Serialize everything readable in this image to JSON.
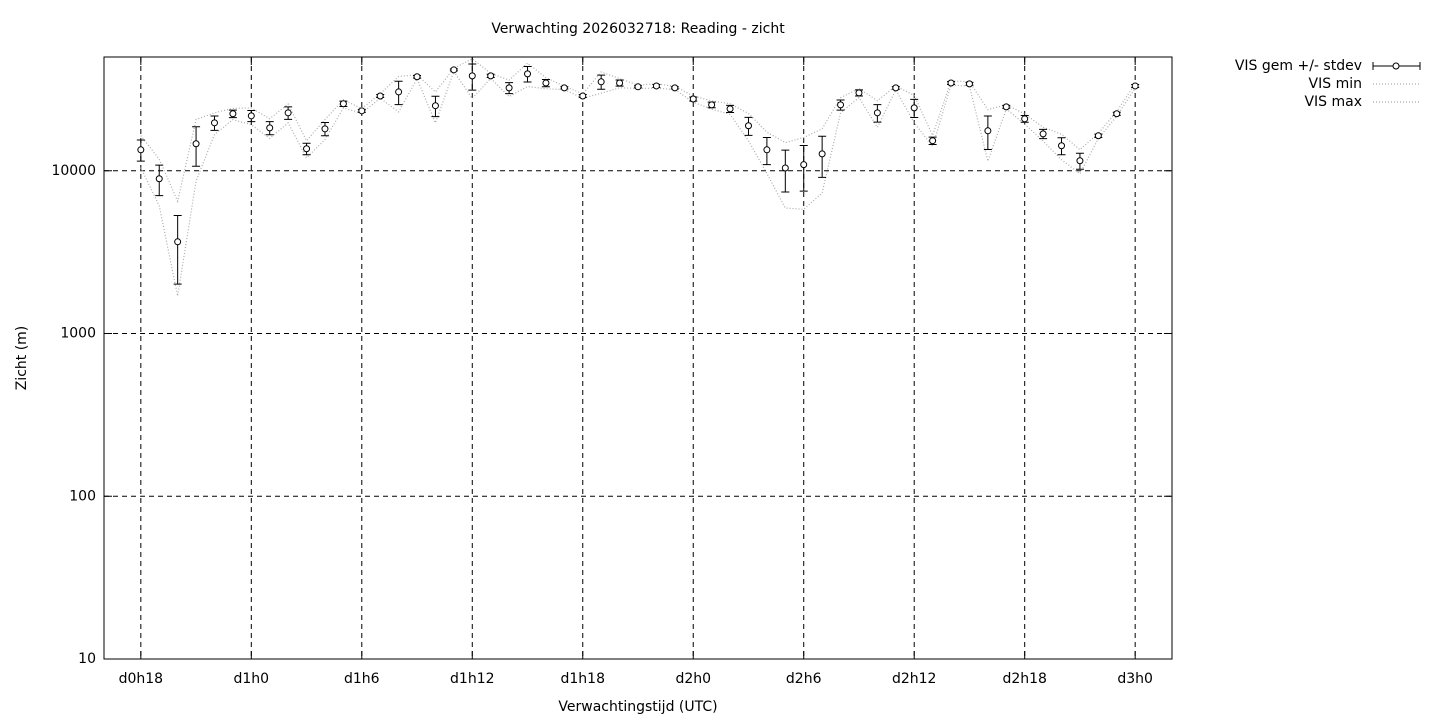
{
  "chart_data": {
    "type": "errorbar",
    "title": "Verwachting 2026032718: Reading - zicht",
    "xlabel": "Verwachtingstijd (UTC)",
    "ylabel": "Zicht (m)",
    "x": [
      18,
      19,
      20,
      21,
      22,
      23,
      24,
      25,
      26,
      27,
      28,
      29,
      30,
      31,
      32,
      33,
      34,
      35,
      36,
      37,
      38,
      39,
      40,
      41,
      42,
      43,
      44,
      45,
      46,
      47,
      48,
      49,
      50,
      51,
      52,
      53,
      54,
      55,
      56,
      57,
      58,
      59,
      60,
      61,
      62,
      63,
      64,
      65,
      66,
      67,
      68,
      69,
      70,
      71,
      72
    ],
    "xlim": [
      16,
      74
    ],
    "xticks": [
      {
        "value": 18,
        "label": "d0h18"
      },
      {
        "value": 24,
        "label": "d1h0"
      },
      {
        "value": 30,
        "label": "d1h6"
      },
      {
        "value": 36,
        "label": "d1h12"
      },
      {
        "value": 42,
        "label": "d1h18"
      },
      {
        "value": 48,
        "label": "d2h0"
      },
      {
        "value": 54,
        "label": "d2h6"
      },
      {
        "value": 60,
        "label": "d2h12"
      },
      {
        "value": 66,
        "label": "d2h18"
      },
      {
        "value": 72,
        "label": "d3h0"
      }
    ],
    "ylim": [
      10,
      50000
    ],
    "yticks": [
      10,
      100,
      1000,
      10000
    ],
    "log_y": true,
    "grid": true,
    "series": [
      {
        "name": "VIS gem +/- stdev",
        "color": "#000000",
        "values": [
          13450,
          8930,
          3660,
          14650,
          19700,
          22400,
          21750,
          18350,
          22700,
          13650,
          18100,
          25800,
          23350,
          28800,
          30500,
          37800,
          25100,
          41700,
          38300,
          38300,
          32300,
          39400,
          34600,
          32300,
          28800,
          35200,
          34600,
          32800,
          33200,
          32300,
          27600,
          25400,
          24000,
          18900,
          13450,
          10400,
          10900,
          12700,
          25400,
          30100,
          22700,
          32300,
          24350,
          15300,
          34600,
          34200,
          17600,
          24700,
          20850,
          16850,
          14240,
          11520,
          16400,
          22400,
          33200
        ],
        "errors": [
          2000,
          1900,
          1650,
          4000,
          2000,
          1200,
          1700,
          1700,
          2000,
          1100,
          1700,
          1000,
          500,
          600,
          5000,
          700,
          3600,
          600,
          7000,
          900,
          2500,
          4300,
          1800,
          500,
          600,
          3500,
          1500,
          500,
          700,
          500,
          800,
          1000,
          1200,
          2400,
          2550,
          3000,
          3400,
          3600,
          1800,
          1300,
          2800,
          600,
          3100,
          800,
          700,
          700,
          4100,
          500,
          1000,
          1100,
          1700,
          1300,
          400,
          500,
          700
        ]
      },
      {
        "name": "VIS min",
        "color": "#aaaaaa",
        "values": [
          10450,
          6080,
          1700,
          8650,
          16700,
          20600,
          19200,
          15800,
          19700,
          12000,
          15550,
          24300,
          22600,
          27900,
          23000,
          36750,
          19700,
          40800,
          27800,
          36950,
          28550,
          32950,
          31900,
          31550,
          27900,
          29950,
          32350,
          32050,
          32150,
          31550,
          26400,
          23900,
          22200,
          15300,
          9625,
          5900,
          5800,
          7300,
          22700,
          28150,
          18500,
          31400,
          19700,
          14100,
          33550,
          33150,
          11450,
          23950,
          19350,
          15200,
          11690,
          9570,
          15800,
          21650,
          32150
        ]
      },
      {
        "name": "VIS max",
        "color": "#aaaaaa",
        "values": [
          16450,
          11780,
          6500,
          20650,
          22700,
          24200,
          24300,
          20900,
          25700,
          15300,
          20650,
          27300,
          24100,
          29700,
          38000,
          38850,
          30500,
          42600,
          48800,
          39650,
          36050,
          45850,
          37300,
          33050,
          29700,
          40450,
          36850,
          33550,
          34250,
          33050,
          28800,
          26900,
          25800,
          22500,
          17275,
          14900,
          16000,
          18100,
          28100,
          32050,
          26900,
          33200,
          29000,
          16500,
          35650,
          35250,
          23750,
          25450,
          22350,
          18500,
          16790,
          13470,
          17000,
          23150,
          34250
        ]
      }
    ]
  }
}
